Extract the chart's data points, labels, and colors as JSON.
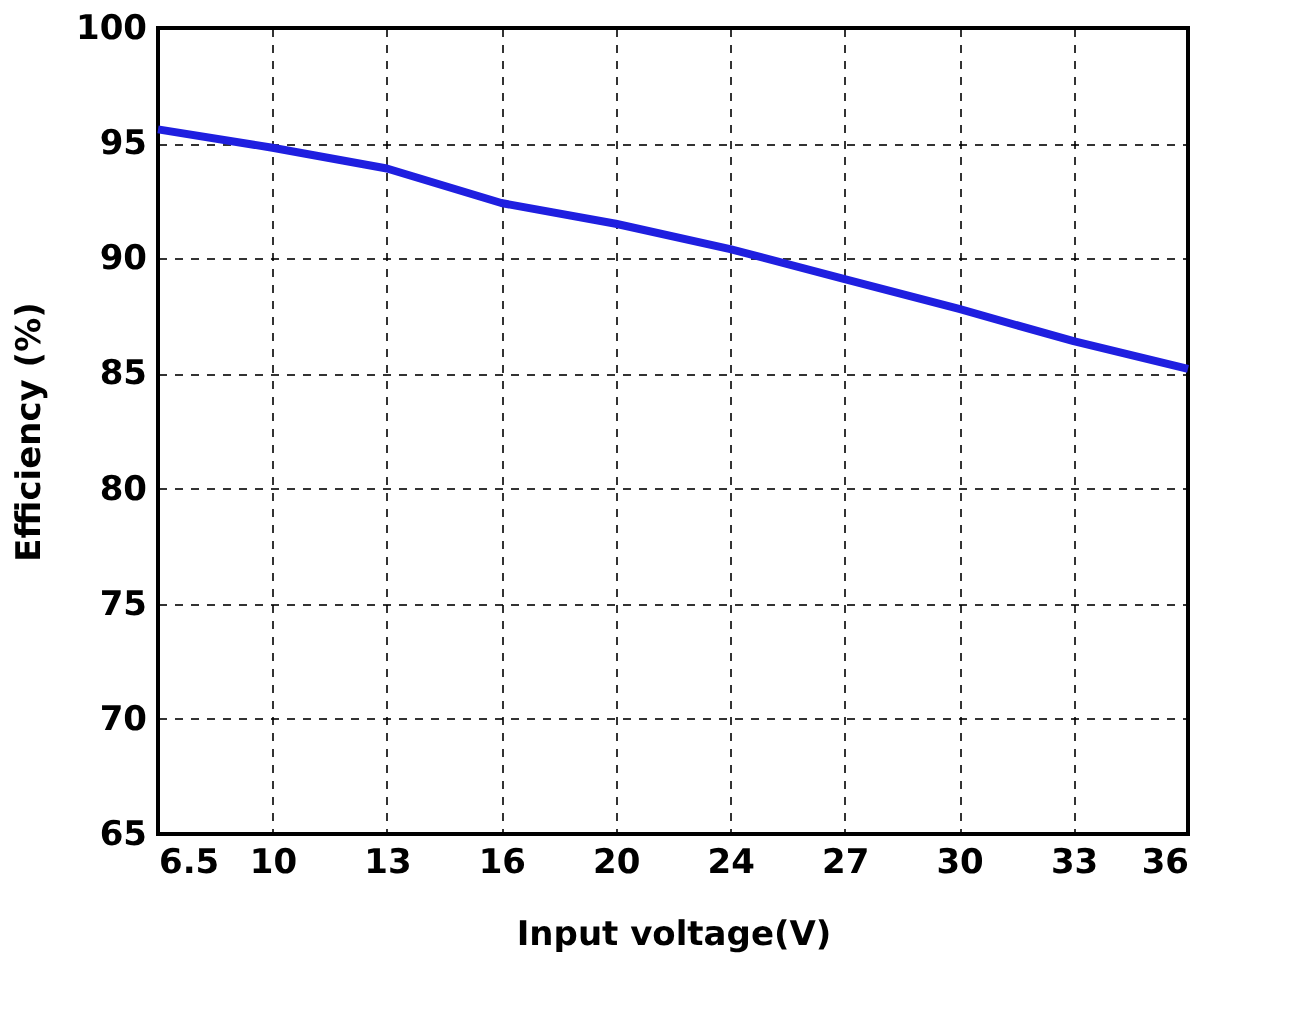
{
  "chart_data": {
    "type": "line",
    "xlabel": "Input voltage(V)",
    "ylabel": "Efficiency (%)",
    "categories": [
      "6.5",
      "10",
      "13",
      "16",
      "20",
      "24",
      "27",
      "30",
      "33",
      "36"
    ],
    "series": [
      {
        "color": "#1f1fe0",
        "values": [
          95.6,
          94.8,
          93.9,
          92.4,
          91.5,
          90.4,
          89.1,
          87.8,
          86.4,
          85.2
        ]
      }
    ],
    "ylim": [
      65,
      100
    ],
    "yticks": [
      65,
      70,
      75,
      80,
      85,
      90,
      95,
      100
    ],
    "grid": true,
    "line_style": "solid",
    "marker": "none"
  }
}
